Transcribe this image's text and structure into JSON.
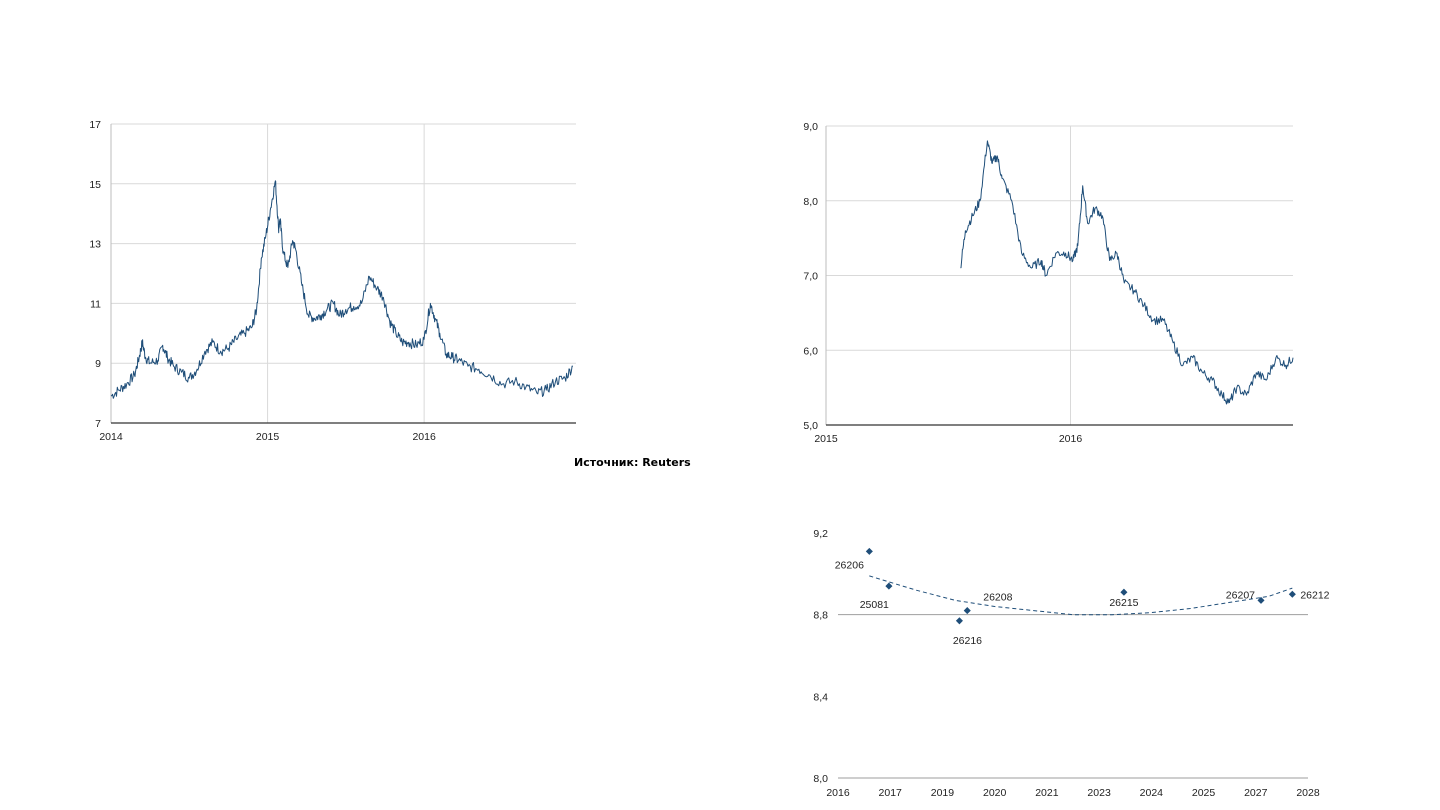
{
  "colors": {
    "series": "#1f4e79",
    "grid": "#d9d9d9",
    "axis": "#333333"
  },
  "source_label": "Источник: Reuters",
  "chart_data": [
    {
      "type": "line",
      "title": "",
      "xlabel": "",
      "ylabel": "",
      "xlim": [
        2014.0,
        2016.97
      ],
      "ylim": [
        7,
        17
      ],
      "x_ticks": [
        2014,
        2015,
        2016
      ],
      "x_tick_labels": [
        "2014",
        "2015",
        "2016"
      ],
      "y_ticks": [
        7,
        9,
        11,
        13,
        15,
        17
      ],
      "y_tick_labels": [
        "7",
        "9",
        "11",
        "13",
        "15",
        "17"
      ],
      "grid": {
        "horizontal": true,
        "vertical": true
      },
      "series": [
        {
          "x": [
            2014.0,
            2014.05,
            2014.1,
            2014.15,
            2014.18,
            2014.2,
            2014.22,
            2014.25,
            2014.3,
            2014.33,
            2014.36,
            2014.4,
            2014.45,
            2014.5,
            2014.55,
            2014.6,
            2014.65,
            2014.7,
            2014.75,
            2014.8,
            2014.85,
            2014.9,
            2014.93,
            2014.96,
            2014.99,
            2015.02,
            2015.05,
            2015.07,
            2015.08,
            2015.1,
            2015.13,
            2015.16,
            2015.18,
            2015.22,
            2015.26,
            2015.3,
            2015.34,
            2015.38,
            2015.42,
            2015.46,
            2015.5,
            2015.55,
            2015.6,
            2015.65,
            2015.7,
            2015.74,
            2015.78,
            2015.82,
            2015.86,
            2015.9,
            2015.95,
            2016.0,
            2016.04,
            2016.07,
            2016.1,
            2016.14,
            2016.18,
            2016.22,
            2016.28,
            2016.35,
            2016.42,
            2016.5,
            2016.58,
            2016.65,
            2016.72,
            2016.78,
            2016.84,
            2016.9,
            2016.95
          ],
          "y": [
            7.9,
            8.1,
            8.3,
            8.6,
            9.2,
            9.7,
            9.2,
            9.0,
            9.1,
            9.6,
            9.2,
            8.9,
            8.7,
            8.5,
            8.8,
            9.4,
            9.7,
            9.4,
            9.5,
            9.8,
            10.0,
            10.2,
            10.8,
            12.5,
            13.3,
            14.2,
            15.1,
            13.5,
            13.8,
            12.7,
            12.2,
            13.1,
            12.8,
            11.6,
            10.6,
            10.5,
            10.6,
            10.8,
            11.0,
            10.6,
            10.8,
            10.9,
            11.0,
            11.9,
            11.5,
            11.2,
            10.4,
            10.0,
            9.7,
            9.7,
            9.6,
            9.8,
            11.0,
            10.5,
            10.0,
            9.3,
            9.2,
            9.1,
            8.9,
            8.8,
            8.6,
            8.3,
            8.4,
            8.2,
            8.0,
            8.1,
            8.4,
            8.5,
            8.9
          ]
        }
      ]
    },
    {
      "type": "line",
      "title": "",
      "xlabel": "",
      "ylabel": "",
      "xlim": [
        2015.0,
        2016.91
      ],
      "ylim": [
        5.0,
        9.0
      ],
      "x_ticks": [
        2015,
        2016
      ],
      "x_tick_labels": [
        "2015",
        "2016"
      ],
      "y_ticks": [
        5.0,
        6.0,
        7.0,
        8.0,
        9.0
      ],
      "y_tick_labels": [
        "5,0",
        "6,0",
        "7,0",
        "8,0",
        "9,0"
      ],
      "grid": {
        "horizontal": true,
        "vertical": true
      },
      "series": [
        {
          "x": [
            2015.55,
            2015.57,
            2015.6,
            2015.63,
            2015.66,
            2015.68,
            2015.7,
            2015.72,
            2015.76,
            2015.8,
            2015.84,
            2015.88,
            2015.9,
            2015.94,
            2015.98,
            2016.01,
            2016.03,
            2016.05,
            2016.07,
            2016.1,
            2016.13,
            2016.16,
            2016.19,
            2016.22,
            2016.26,
            2016.3,
            2016.34,
            2016.38,
            2016.42,
            2016.46,
            2016.5,
            2016.54,
            2016.58,
            2016.62,
            2016.65,
            2016.68,
            2016.72,
            2016.76,
            2016.8,
            2016.84,
            2016.88,
            2016.91
          ],
          "y": [
            7.1,
            7.6,
            7.8,
            8.0,
            8.8,
            8.5,
            8.6,
            8.3,
            8.0,
            7.3,
            7.1,
            7.2,
            7.0,
            7.3,
            7.3,
            7.2,
            7.4,
            8.2,
            7.7,
            7.9,
            7.8,
            7.2,
            7.3,
            6.9,
            6.8,
            6.6,
            6.4,
            6.4,
            6.1,
            5.8,
            5.9,
            5.7,
            5.6,
            5.4,
            5.3,
            5.5,
            5.4,
            5.7,
            5.6,
            5.9,
            5.8,
            5.9
          ]
        }
      ]
    },
    {
      "type": "scatter",
      "title": "",
      "xlabel": "",
      "ylabel": "",
      "xlim": [
        2016,
        2028
      ],
      "ylim": [
        8.0,
        9.2
      ],
      "x_ticks": [
        2016,
        2017,
        2019,
        2020,
        2021,
        2023,
        2024,
        2025,
        2027,
        2028
      ],
      "x_tick_labels": [
        "2016",
        "2017",
        "2019",
        "2020",
        "2021",
        "2023",
        "2024",
        "2025",
        "2027",
        "2028"
      ],
      "y_ticks": [
        8.0,
        8.4,
        8.8,
        9.2
      ],
      "y_tick_labels": [
        "8,0",
        "8,4",
        "8,8",
        "9,2"
      ],
      "grid": {
        "horizontal": false,
        "vertical": false
      },
      "points": [
        {
          "label": "26206",
          "x": 2016.8,
          "y": 9.11
        },
        {
          "label": "25081",
          "x": 2017.3,
          "y": 8.94
        },
        {
          "label": "26216",
          "x": 2019.1,
          "y": 8.77
        },
        {
          "label": "26208",
          "x": 2019.3,
          "y": 8.82
        },
        {
          "label": "26215",
          "x": 2023.3,
          "y": 8.91
        },
        {
          "label": "26207",
          "x": 2026.8,
          "y": 8.87
        },
        {
          "label": "26212",
          "x": 2027.6,
          "y": 8.9
        }
      ],
      "trendline": {
        "type": "quadratic",
        "x": [
          2016.8,
          2018.0,
          2019.0,
          2020.0,
          2021.0,
          2022.0,
          2023.0,
          2024.0,
          2025.0,
          2026.0,
          2027.0,
          2027.6
        ],
        "y": [
          8.99,
          8.92,
          8.87,
          8.84,
          8.82,
          8.8,
          8.8,
          8.81,
          8.83,
          8.86,
          8.89,
          8.93
        ]
      }
    }
  ]
}
